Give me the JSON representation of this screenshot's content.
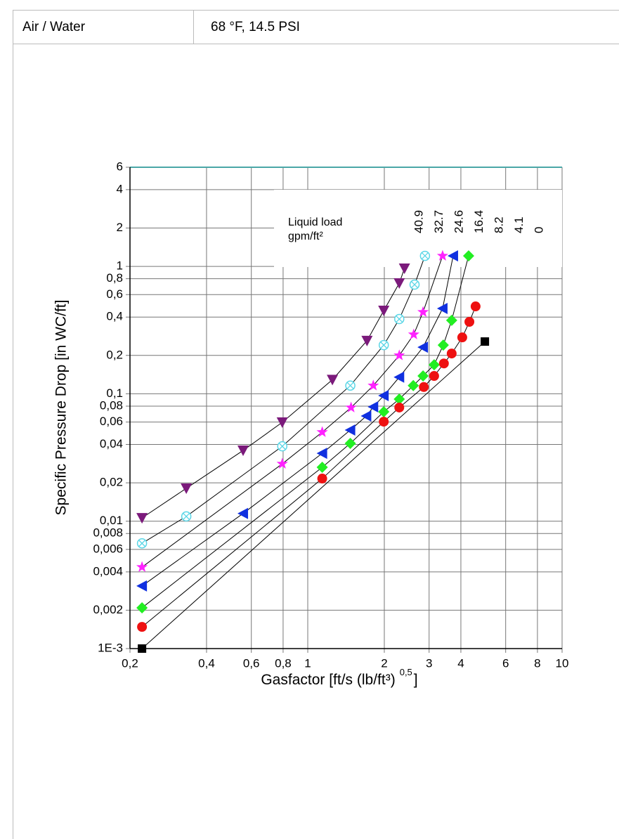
{
  "table": {
    "cells": [
      "Air / Water",
      "68 °F, 14.5 PSI"
    ]
  },
  "chart_data": {
    "type": "scatter",
    "y_label": "Specific Pressure Drop [in WC/ft]",
    "x_label": {
      "base": "Gasfactor [ft/s (lb/ft³)",
      "exponent": "0,5",
      "close": "]"
    },
    "legend_title": [
      "Liquid load",
      "gpm/ft²"
    ],
    "log_x": true,
    "log_y": true,
    "grid": true,
    "xlim": [
      0.2,
      10
    ],
    "ylim": [
      0.001,
      6
    ],
    "xticks": [
      {
        "value": 0.2,
        "label": "0,2"
      },
      {
        "value": 0.4,
        "label": "0,4"
      },
      {
        "value": 0.6,
        "label": "0,6"
      },
      {
        "value": 0.8,
        "label": "0,8"
      },
      1,
      2,
      3,
      4,
      6,
      8,
      10
    ],
    "yticks": [
      {
        "value": 0.001,
        "label": "1E-3"
      },
      {
        "value": 0.002,
        "label": "0,002"
      },
      {
        "value": 0.004,
        "label": "0,004"
      },
      {
        "value": 0.006,
        "label": "0,006"
      },
      {
        "value": 0.008,
        "label": "0,008"
      },
      {
        "value": 0.01,
        "label": "0,01"
      },
      {
        "value": 0.02,
        "label": "0,02"
      },
      {
        "value": 0.04,
        "label": "0,04"
      },
      {
        "value": 0.06,
        "label": "0,06"
      },
      {
        "value": 0.08,
        "label": "0,08"
      },
      {
        "value": 0.1,
        "label": "0,1"
      },
      {
        "value": 0.2,
        "label": "0,2"
      },
      {
        "value": 0.4,
        "label": "0,4"
      },
      {
        "value": 0.6,
        "label": "0,6"
      },
      {
        "value": 0.8,
        "label": "0,8"
      },
      1,
      2,
      4,
      6
    ],
    "series": [
      {
        "name": "40.9",
        "color": "#7b1a7b",
        "marker": "triangle-down",
        "x": [
          0.223,
          0.333,
          0.557,
          0.794,
          1.25,
          1.71,
          1.99,
          2.29,
          2.4
        ],
        "values": [
          0.0106,
          0.0181,
          0.0359,
          0.0597,
          0.129,
          0.261,
          0.45,
          0.738,
          0.964
        ]
      },
      {
        "name": "32.7",
        "color": "#5ad6e6",
        "marker": "circle-x",
        "x": [
          0.223,
          0.333,
          0.794,
          1.47,
          1.99,
          2.29,
          2.63,
          2.89
        ],
        "values": [
          0.0067,
          0.0109,
          0.0387,
          0.116,
          0.241,
          0.386,
          0.719,
          1.21
        ]
      },
      {
        "name": "24.6",
        "color": "#ff22ff",
        "marker": "star",
        "x": [
          0.223,
          0.794,
          1.14,
          1.48,
          1.81,
          2.29,
          2.61,
          2.84,
          3.39
        ],
        "values": [
          0.00436,
          0.0282,
          0.05,
          0.078,
          0.116,
          0.2,
          0.292,
          0.438,
          1.21
        ]
      },
      {
        "name": "16.4",
        "color": "#1030e0",
        "marker": "triangle-left",
        "x": [
          0.223,
          0.557,
          1.14,
          1.47,
          1.7,
          1.81,
          1.99,
          2.29,
          2.84,
          3.39,
          3.73
        ],
        "values": [
          0.0031,
          0.0115,
          0.0341,
          0.0519,
          0.0669,
          0.0789,
          0.0967,
          0.135,
          0.232,
          0.467,
          1.21
        ]
      },
      {
        "name": "8.2",
        "color": "#22ee22",
        "marker": "diamond",
        "x": [
          0.223,
          1.14,
          1.47,
          1.99,
          2.29,
          2.6,
          2.84,
          3.14,
          3.41,
          3.68,
          4.29
        ],
        "values": [
          0.00209,
          0.0265,
          0.0408,
          0.0722,
          0.0908,
          0.116,
          0.138,
          0.169,
          0.241,
          0.377,
          1.21
        ]
      },
      {
        "name": "4.1",
        "color": "#ee1111",
        "marker": "circle",
        "x": [
          0.223,
          1.14,
          1.99,
          2.29,
          2.86,
          3.14,
          3.43,
          3.68,
          4.05,
          4.32,
          4.57
        ],
        "values": [
          0.00148,
          0.0216,
          0.0604,
          0.078,
          0.113,
          0.138,
          0.173,
          0.207,
          0.277,
          0.367,
          0.485
        ]
      },
      {
        "name": "0",
        "color": "#000000",
        "marker": "square",
        "x": [
          0.223,
          4.97
        ],
        "values": [
          0.001,
          0.257
        ]
      }
    ]
  }
}
